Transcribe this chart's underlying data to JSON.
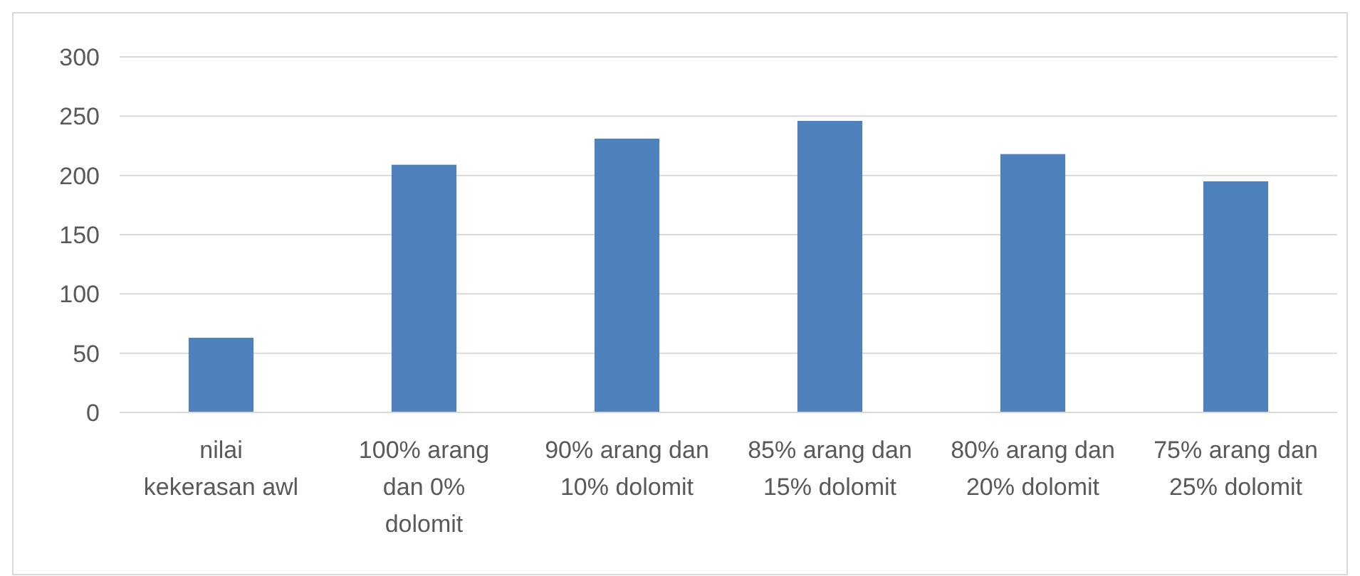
{
  "chart_data": {
    "type": "bar",
    "categories": [
      "nilai kekerasan awl",
      "100% arang dan 0% dolomit",
      "90% arang dan 10% dolomit",
      "85% arang dan 15% dolomit",
      "80% arang dan 20% dolomit",
      "75% arang dan 25% dolomit"
    ],
    "values": [
      63,
      209,
      231,
      246,
      218,
      195
    ],
    "color": "#4f81bd",
    "ylim": [
      0,
      300
    ],
    "yticks": [
      0,
      50,
      100,
      150,
      200,
      250,
      300
    ],
    "grid": "y"
  }
}
